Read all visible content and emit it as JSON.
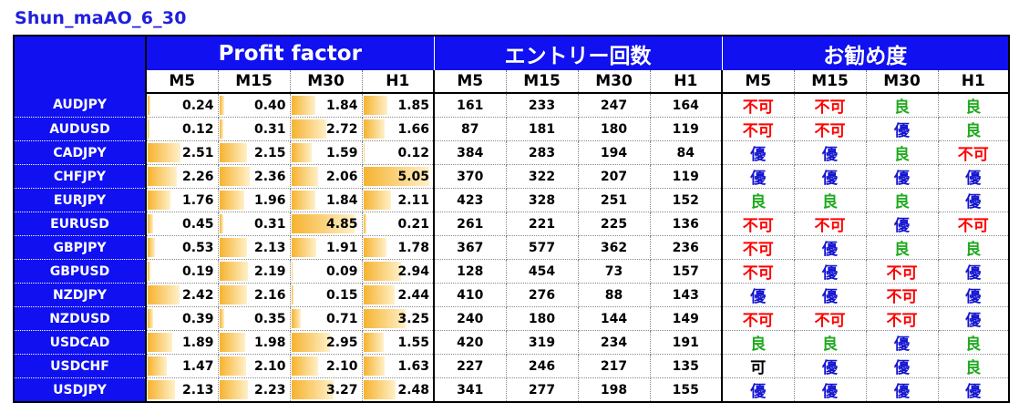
{
  "title": "Shun_maAO_6_30",
  "groups": [
    "Profit factor",
    "エントリー回数",
    "お勧め度"
  ],
  "timeframes": [
    "M5",
    "M15",
    "M30",
    "H1"
  ],
  "pf_max": 5.05,
  "rating_colors": {
    "不可": "#ff0000",
    "良": "#1faa1f",
    "優": "#1515d0",
    "可": "#000000"
  },
  "rows": [
    {
      "pair": "AUDJPY",
      "pf": [
        "0.24",
        "0.40",
        "1.84",
        "1.85"
      ],
      "count": [
        "161",
        "233",
        "247",
        "164"
      ],
      "rating": [
        "不可",
        "不可",
        "良",
        "良"
      ]
    },
    {
      "pair": "AUDUSD",
      "pf": [
        "0.12",
        "0.31",
        "2.72",
        "1.66"
      ],
      "count": [
        "87",
        "181",
        "180",
        "119"
      ],
      "rating": [
        "不可",
        "不可",
        "優",
        "良"
      ]
    },
    {
      "pair": "CADJPY",
      "pf": [
        "2.51",
        "2.15",
        "1.59",
        "0.12"
      ],
      "count": [
        "384",
        "283",
        "194",
        "84"
      ],
      "rating": [
        "優",
        "優",
        "良",
        "不可"
      ]
    },
    {
      "pair": "CHFJPY",
      "pf": [
        "2.26",
        "2.36",
        "2.06",
        "5.05"
      ],
      "count": [
        "370",
        "322",
        "207",
        "119"
      ],
      "rating": [
        "優",
        "優",
        "優",
        "優"
      ]
    },
    {
      "pair": "EURJPY",
      "pf": [
        "1.76",
        "1.96",
        "1.84",
        "2.11"
      ],
      "count": [
        "423",
        "328",
        "251",
        "152"
      ],
      "rating": [
        "良",
        "良",
        "良",
        "優"
      ]
    },
    {
      "pair": "EURUSD",
      "pf": [
        "0.45",
        "0.31",
        "4.85",
        "0.21"
      ],
      "count": [
        "261",
        "221",
        "225",
        "136"
      ],
      "rating": [
        "不可",
        "不可",
        "優",
        "不可"
      ]
    },
    {
      "pair": "GBPJPY",
      "pf": [
        "0.53",
        "2.13",
        "1.91",
        "1.78"
      ],
      "count": [
        "367",
        "577",
        "362",
        "236"
      ],
      "rating": [
        "不可",
        "優",
        "良",
        "良"
      ]
    },
    {
      "pair": "GBPUSD",
      "pf": [
        "0.19",
        "2.19",
        "0.09",
        "2.94"
      ],
      "count": [
        "128",
        "454",
        "73",
        "157"
      ],
      "rating": [
        "不可",
        "優",
        "不可",
        "優"
      ]
    },
    {
      "pair": "NZDJPY",
      "pf": [
        "2.42",
        "2.16",
        "0.15",
        "2.44"
      ],
      "count": [
        "410",
        "276",
        "88",
        "143"
      ],
      "rating": [
        "優",
        "優",
        "不可",
        "優"
      ]
    },
    {
      "pair": "NZDUSD",
      "pf": [
        "0.39",
        "0.35",
        "0.71",
        "3.25"
      ],
      "count": [
        "240",
        "180",
        "144",
        "149"
      ],
      "rating": [
        "不可",
        "不可",
        "不可",
        "優"
      ]
    },
    {
      "pair": "USDCAD",
      "pf": [
        "1.89",
        "1.98",
        "2.95",
        "1.55"
      ],
      "count": [
        "420",
        "319",
        "234",
        "191"
      ],
      "rating": [
        "良",
        "良",
        "優",
        "良"
      ]
    },
    {
      "pair": "USDCHF",
      "pf": [
        "1.47",
        "2.10",
        "2.10",
        "1.63"
      ],
      "count": [
        "227",
        "246",
        "217",
        "135"
      ],
      "rating": [
        "可",
        "優",
        "優",
        "良"
      ]
    },
    {
      "pair": "USDJPY",
      "pf": [
        "2.13",
        "2.23",
        "3.27",
        "2.48"
      ],
      "count": [
        "341",
        "277",
        "198",
        "155"
      ],
      "rating": [
        "優",
        "優",
        "優",
        "優"
      ]
    }
  ]
}
